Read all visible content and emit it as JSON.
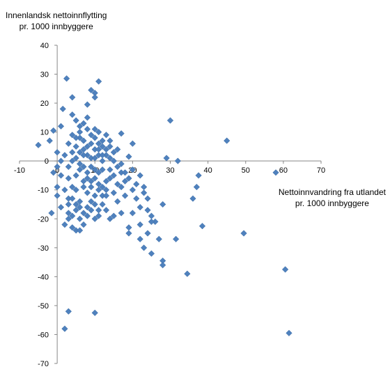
{
  "chart_data": {
    "type": "scatter",
    "ylabel_line1": "Innenlandsk nettoinnflytting",
    "ylabel_line2": "pr. 1000 innbyggere",
    "xlabel_line1": "Nettoinnvandring fra utlandet",
    "xlabel_line2": "pr. 1000 innbyggere",
    "xlim": [
      -10,
      70
    ],
    "ylim": [
      -70,
      40
    ],
    "x_ticks": [
      -10,
      0,
      10,
      20,
      30,
      40,
      50,
      60,
      70
    ],
    "y_ticks": [
      40,
      30,
      20,
      10,
      0,
      -10,
      -20,
      -30,
      -40,
      -50,
      -60,
      -70
    ],
    "grid": false,
    "legend": "none",
    "marker_color": "#4F81BD",
    "points": [
      [
        -5,
        5.5
      ],
      [
        -2,
        7
      ],
      [
        -1,
        10.5
      ],
      [
        -1.5,
        -18
      ],
      [
        -1,
        -4
      ],
      [
        0,
        -2
      ],
      [
        0,
        3
      ],
      [
        0,
        -12
      ],
      [
        0,
        -9
      ],
      [
        1,
        -5
      ],
      [
        1,
        0
      ],
      [
        1,
        -16
      ],
      [
        1,
        12
      ],
      [
        1.5,
        18
      ],
      [
        2,
        -22
      ],
      [
        2.5,
        28.5
      ],
      [
        3,
        -20
      ],
      [
        3,
        -18
      ],
      [
        3,
        -2
      ],
      [
        3,
        -13
      ],
      [
        4,
        22
      ],
      [
        4,
        16
      ],
      [
        4,
        -23
      ],
      [
        4,
        9
      ],
      [
        4,
        -13
      ],
      [
        2,
        -58
      ],
      [
        3,
        -52
      ],
      [
        5,
        -24
      ],
      [
        5,
        -15
      ],
      [
        5,
        -10
      ],
      [
        5,
        14
      ],
      [
        5,
        5
      ],
      [
        6,
        -16
      ],
      [
        6,
        -14
      ],
      [
        6,
        8
      ],
      [
        6,
        -3
      ],
      [
        6,
        -24
      ],
      [
        7,
        -18
      ],
      [
        7,
        13
      ],
      [
        7,
        -2
      ],
      [
        7,
        -9
      ],
      [
        8,
        15
      ],
      [
        8,
        19.5
      ],
      [
        8,
        -19
      ],
      [
        8,
        2
      ],
      [
        8,
        -6
      ],
      [
        9,
        24.5
      ],
      [
        9,
        -7
      ],
      [
        9,
        9
      ],
      [
        9,
        -14
      ],
      [
        10,
        23.5
      ],
      [
        10,
        22
      ],
      [
        10,
        -20
      ],
      [
        10,
        -52.5
      ],
      [
        10,
        4
      ],
      [
        10,
        -3
      ],
      [
        10,
        -12
      ],
      [
        11,
        27.5
      ],
      [
        11,
        10
      ],
      [
        11,
        -17
      ],
      [
        11,
        2
      ],
      [
        11,
        -8
      ],
      [
        12,
        7
      ],
      [
        12,
        -15
      ],
      [
        12,
        -3
      ],
      [
        12,
        0
      ],
      [
        13,
        4
      ],
      [
        13,
        -10
      ],
      [
        13,
        -17
      ],
      [
        14,
        -20
      ],
      [
        14,
        -6
      ],
      [
        14,
        1
      ],
      [
        15,
        -19
      ],
      [
        15,
        -11
      ],
      [
        15,
        3
      ],
      [
        16,
        -14
      ],
      [
        16,
        -2
      ],
      [
        17,
        9.5
      ],
      [
        17,
        -4
      ],
      [
        17,
        -18
      ],
      [
        18,
        -7
      ],
      [
        18,
        -12
      ],
      [
        19,
        -23
      ],
      [
        19,
        -25
      ],
      [
        19,
        1.5
      ],
      [
        20,
        -18
      ],
      [
        20,
        6
      ],
      [
        20,
        -10
      ],
      [
        21,
        -13
      ],
      [
        22,
        -16
      ],
      [
        22,
        -22
      ],
      [
        22,
        -27
      ],
      [
        23,
        -9
      ],
      [
        23,
        -30
      ],
      [
        24,
        -25
      ],
      [
        24,
        -17
      ],
      [
        25,
        -32
      ],
      [
        25,
        -19
      ],
      [
        26,
        -21
      ],
      [
        27,
        -27
      ],
      [
        28,
        -15
      ],
      [
        28,
        -34.5
      ],
      [
        28,
        -36
      ],
      [
        29,
        1
      ],
      [
        30,
        14
      ],
      [
        31.5,
        -27
      ],
      [
        32,
        0
      ],
      [
        34.5,
        -39
      ],
      [
        36,
        -13
      ],
      [
        37,
        -9
      ],
      [
        37.5,
        -5
      ],
      [
        38.5,
        -22.5
      ],
      [
        45,
        7
      ],
      [
        49.5,
        -25
      ],
      [
        58,
        -4
      ],
      [
        60.5,
        -37.5
      ],
      [
        61.5,
        -59.5
      ],
      [
        3,
        6
      ],
      [
        4,
        3
      ],
      [
        5,
        1
      ],
      [
        6,
        -1
      ],
      [
        7,
        4
      ],
      [
        8,
        -4
      ],
      [
        9,
        6
      ],
      [
        10,
        -6
      ],
      [
        11,
        4
      ],
      [
        12,
        -9
      ],
      [
        13,
        2
      ],
      [
        14,
        -3
      ],
      [
        6,
        10
      ],
      [
        7,
        7
      ],
      [
        8,
        11
      ],
      [
        9,
        1
      ],
      [
        10,
        8
      ],
      [
        11,
        -10
      ],
      [
        12,
        5
      ],
      [
        13,
        -7
      ],
      [
        14,
        7
      ],
      [
        15,
        -5
      ],
      [
        16,
        4
      ],
      [
        17,
        -1
      ],
      [
        2,
        2
      ],
      [
        3,
        -6
      ],
      [
        4,
        -9
      ],
      [
        5,
        -5
      ],
      [
        6,
        3
      ],
      [
        7,
        -7
      ],
      [
        8,
        -11
      ],
      [
        9,
        -9
      ],
      [
        10,
        1
      ],
      [
        11,
        -4
      ],
      [
        12,
        -12
      ],
      [
        13,
        -12
      ],
      [
        4,
        0
      ],
      [
        5,
        8
      ],
      [
        6,
        12
      ],
      [
        7,
        2
      ],
      [
        8,
        5
      ],
      [
        9,
        -2
      ],
      [
        10,
        11
      ],
      [
        11,
        6
      ],
      [
        12,
        2
      ],
      [
        13,
        9
      ],
      [
        14,
        5
      ],
      [
        15,
        0
      ],
      [
        2,
        -10
      ],
      [
        3,
        -15
      ],
      [
        4,
        -19
      ],
      [
        5,
        -17
      ],
      [
        6,
        -20
      ],
      [
        7,
        -22
      ],
      [
        8,
        -16
      ],
      [
        9,
        -17
      ],
      [
        10,
        -15
      ],
      [
        11,
        -19
      ],
      [
        16,
        -8
      ],
      [
        17,
        -9
      ],
      [
        18,
        -4
      ],
      [
        19,
        -6
      ],
      [
        20,
        -3
      ],
      [
        21,
        -8
      ],
      [
        22,
        -5
      ],
      [
        23,
        -11
      ],
      [
        24,
        -13
      ],
      [
        25,
        -21
      ]
    ]
  }
}
